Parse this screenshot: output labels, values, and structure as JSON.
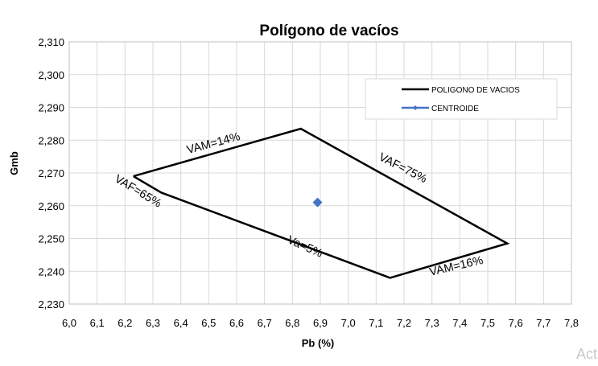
{
  "chart_data": {
    "type": "line",
    "title": "Polígono de vacíos",
    "xlabel": "Pb (%)",
    "ylabel": "Gmb",
    "xlim": [
      6.0,
      7.8
    ],
    "ylim": [
      2.23,
      2.31
    ],
    "x_ticks": [
      "6,0",
      "6,1",
      "6,2",
      "6,3",
      "6,4",
      "6,5",
      "6,6",
      "6,7",
      "6,8",
      "6,9",
      "7,0",
      "7,1",
      "7,2",
      "7,3",
      "7,4",
      "7,5",
      "7,6",
      "7,7",
      "7,8"
    ],
    "y_ticks": [
      "2,230",
      "2,240",
      "2,250",
      "2,260",
      "2,270",
      "2,280",
      "2,290",
      "2,300",
      "2,310"
    ],
    "grid": true,
    "legend_position": "top-right",
    "series": [
      {
        "name": "POLIGONO DE VACIOS",
        "color": "#000000",
        "points": [
          [
            6.23,
            2.269
          ],
          [
            6.83,
            2.2835
          ],
          [
            7.57,
            2.2485
          ],
          [
            7.15,
            2.238
          ],
          [
            6.33,
            2.264
          ],
          [
            6.23,
            2.269
          ]
        ]
      },
      {
        "name": "CENTROIDE",
        "color": "#4472C4",
        "marker": "diamond",
        "points": [
          [
            6.89,
            2.261
          ]
        ]
      }
    ],
    "annotations": [
      {
        "text": "VAM=14%",
        "x": 6.52,
        "y": 2.278,
        "angle": -15
      },
      {
        "text": "VAF=75%",
        "x": 7.19,
        "y": 2.2705,
        "angle": 27
      },
      {
        "text": "VAF=65%",
        "x": 6.24,
        "y": 2.2635,
        "angle": 31
      },
      {
        "text": "Va=5%",
        "x": 6.84,
        "y": 2.2465,
        "angle": 24
      },
      {
        "text": "VAM=16%",
        "x": 7.39,
        "y": 2.2405,
        "angle": -13
      }
    ]
  },
  "watermark": "Act"
}
